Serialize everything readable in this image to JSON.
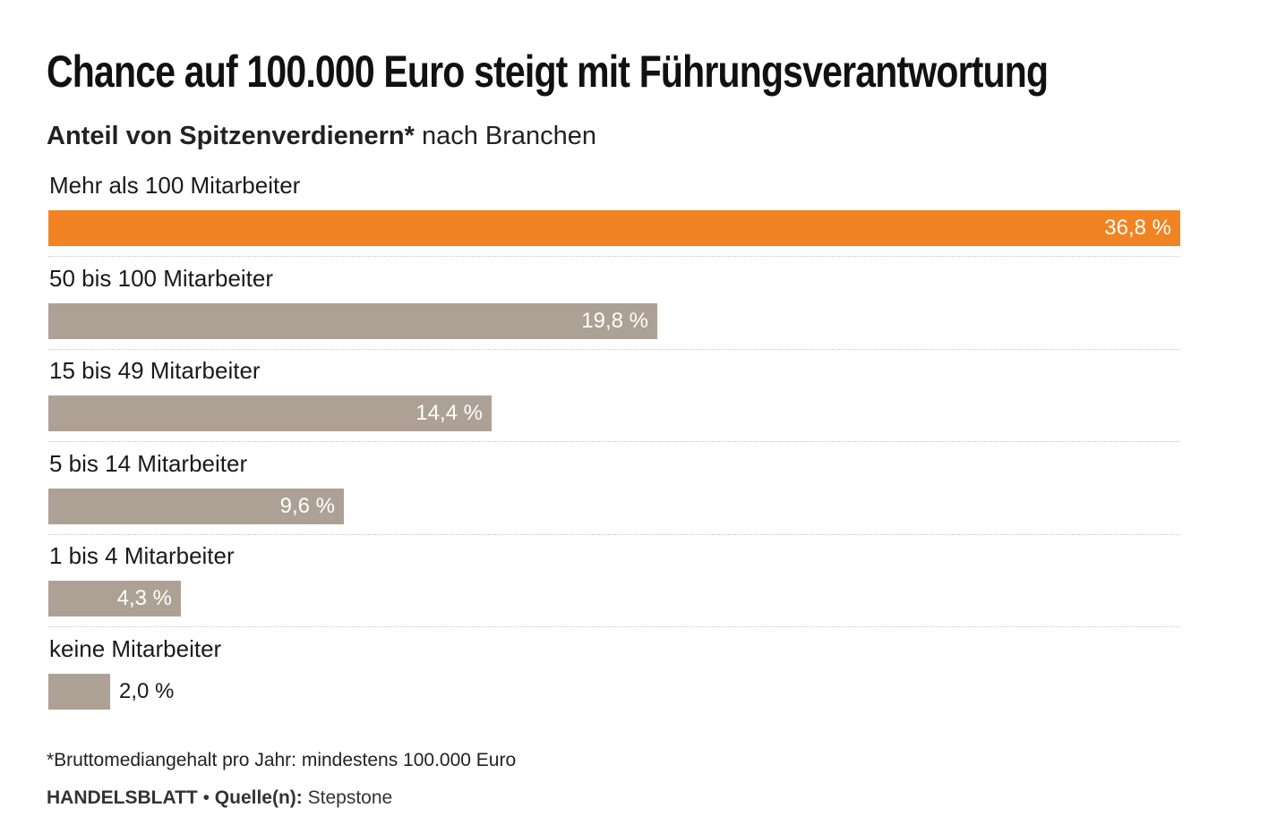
{
  "chart_data": {
    "type": "bar",
    "orientation": "horizontal",
    "title": "Chance auf 100.000 Euro steigt mit Führungsverantwortung",
    "subtitle_bold": "Anteil von Spitzenverdienern*",
    "subtitle_rest": " nach Branchen",
    "categories": [
      "Mehr als 100 Mitarbeiter",
      "50 bis 100 Mitarbeiter",
      "15 bis 49 Mitarbeiter",
      "5 bis 14 Mitarbeiter",
      "1 bis 4 Mitarbeiter",
      "keine Mitarbeiter"
    ],
    "values": [
      36.8,
      19.8,
      14.4,
      9.6,
      4.3,
      2.0
    ],
    "value_labels": [
      "36,8 %",
      "19,8 %",
      "14,4 %",
      "9,6 %",
      "4,3 %",
      "2,0 %"
    ],
    "unit": "%",
    "xlim": [
      0,
      36.8
    ],
    "highlight_index": 0,
    "colors": {
      "highlight": "#f28322",
      "default": "#ada195"
    },
    "grid": false
  },
  "footnote": "*Bruttomediangehalt pro Jahr: mindestens 100.000 Euro",
  "source": {
    "publisher": "HANDELSBLATT",
    "separator": " • ",
    "label": "Quelle(n):",
    "value": " Stepstone"
  }
}
